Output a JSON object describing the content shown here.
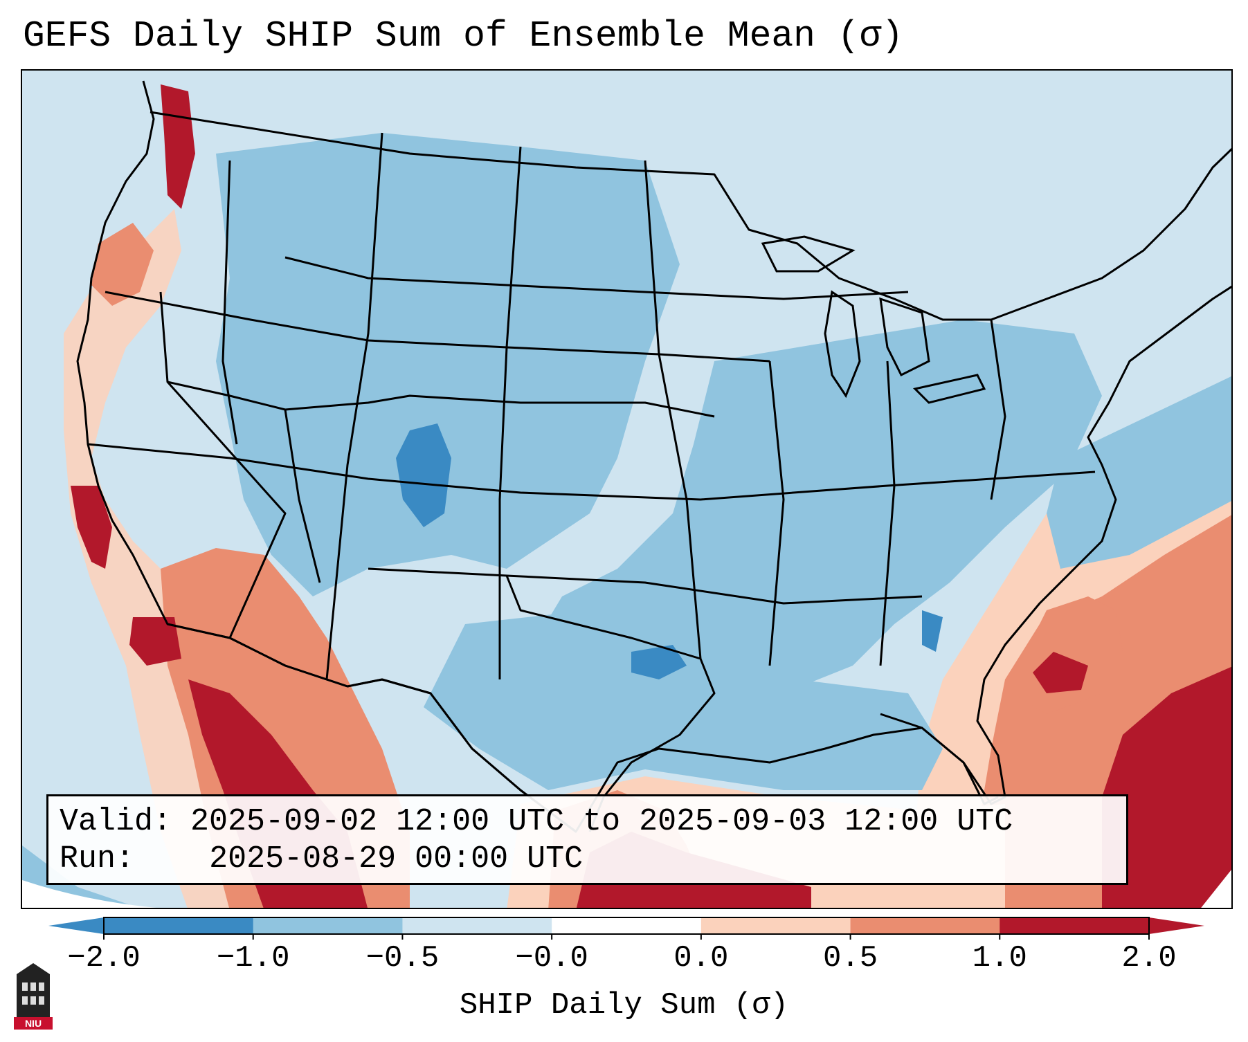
{
  "title": "GEFS Daily SHIP Sum of Ensemble Mean (σ)",
  "info": {
    "valid_label": "Valid:",
    "valid_value": "2025-09-02 12:00 UTC to 2025-09-03 12:00 UTC",
    "run_label": "Run:",
    "run_value": "2025-08-29 00:00 UTC"
  },
  "colorbar": {
    "label": "SHIP Daily Sum (σ)",
    "ticks": [
      "−2.0",
      "−1.0",
      "−0.5",
      "−0.0",
      "0.0",
      "0.5",
      "1.0",
      "2.0"
    ],
    "colors": [
      "#3a8ac3",
      "#90c4df",
      "#cfe4f0",
      "#ffffff",
      "#fbd2bc",
      "#ea8d70",
      "#b2182b"
    ],
    "extend_low_color": "#3a8ac3",
    "extend_high_color": "#b2182b"
  },
  "logo": {
    "text": "NIU",
    "icon": "niu-tower-icon"
  },
  "map": {
    "region": "Contiguous United States",
    "palette": {
      "very_low": "#3a8ac3",
      "low": "#90c4df",
      "neutral_low": "#cfe4f0",
      "neutral_high": "#fbd2bc",
      "high": "#ea8d70",
      "very_high": "#b2182b"
    }
  }
}
